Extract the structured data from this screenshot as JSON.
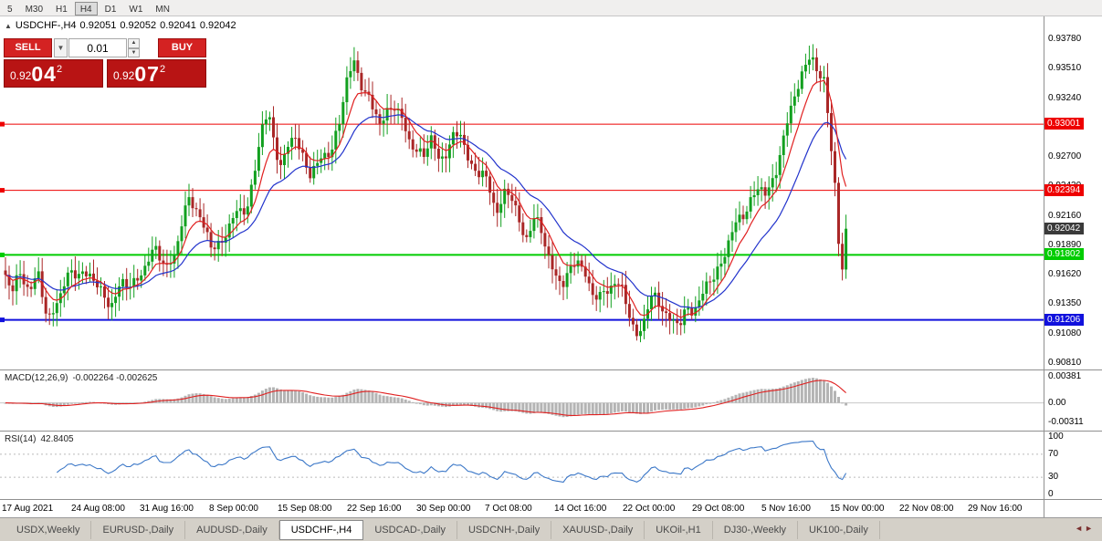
{
  "toolbar": {
    "timeframes": [
      "5",
      "M30",
      "H1",
      "H4",
      "D1",
      "W1",
      "MN"
    ],
    "active": "H4"
  },
  "chart_header": {
    "collapse_icon": "up-triangle",
    "symbol_period": "USDCHF-,H4",
    "open": "0.92051",
    "high": "0.92052",
    "low": "0.92041",
    "close": "0.92042"
  },
  "trade_panel": {
    "sell_label": "SELL",
    "buy_label": "BUY",
    "volume": "0.01",
    "sell_price": {
      "prefix": "0.92",
      "main": "04",
      "sup": "2"
    },
    "buy_price": {
      "prefix": "0.92",
      "main": "07",
      "sup": "2"
    },
    "panel_color": "#b81414",
    "button_color": "#d42222"
  },
  "price_axis": {
    "labels": [
      "0.93780",
      "0.93510",
      "0.93240",
      "0.92970",
      "0.92700",
      "0.92430",
      "0.92160",
      "0.91890",
      "0.91620",
      "0.91350",
      "0.91080",
      "0.90810"
    ]
  },
  "hlines": [
    {
      "price": 0.93001,
      "label": "0.93001",
      "color": "#ee0000"
    },
    {
      "price": 0.92394,
      "label": "0.92394",
      "color": "#ee0000"
    },
    {
      "price": 0.91802,
      "label": "0.91802",
      "color": "#00cc00"
    },
    {
      "price": 0.91206,
      "label": "0.91206",
      "color": "#1111dd"
    }
  ],
  "current_price": {
    "label": "0.92042",
    "value": 0.92042,
    "box_color": "#3a3a3a"
  },
  "macd": {
    "label": "MACD(12,26,9)",
    "values": "-0.002264 -0.002625",
    "axis": [
      "0.00381",
      "0.00",
      "-0.00311"
    ],
    "hist_color": "#b4b4b4",
    "signal_color": "#e02020"
  },
  "rsi": {
    "label": "RSI(14)",
    "value": "42.8405",
    "axis": [
      "100",
      "70",
      "30",
      "0"
    ],
    "levels": [
      70,
      30
    ],
    "line_color": "#3c78c8"
  },
  "time_axis": [
    "17 Aug 2021",
    "24 Aug 08:00",
    "31 Aug 16:00",
    "8 Sep 00:00",
    "15 Sep 08:00",
    "22 Sep 16:00",
    "30 Sep 00:00",
    "7 Oct 08:00",
    "14 Oct 16:00",
    "22 Oct 00:00",
    "29 Oct 08:00",
    "5 Nov 16:00",
    "15 Nov 00:00",
    "22 Nov 08:00",
    "29 Nov 16:00"
  ],
  "tabs": {
    "items": [
      "USDX,Weekly",
      "EURUSD-,Daily",
      "AUDUSD-,Daily",
      "USDCHF-,H4",
      "USDCAD-,Daily",
      "USDCNH-,Daily",
      "XAUUSD-,Daily",
      "UKOil-,H1",
      "DJ30-,Weekly",
      "UK100-,Daily"
    ],
    "active_index": 3
  },
  "chart_data": {
    "type": "candlestick",
    "symbol": "USDCHF-",
    "timeframe": "H4",
    "ylim": [
      0.90751,
      0.93989
    ],
    "last_close": 0.92042,
    "up_color": "#12a01f",
    "down_color": "#aa2727",
    "ma_fast_color": "#e02020",
    "ma_slow_color": "#2233cc",
    "indicators": {
      "ma_fast_period": 8,
      "ma_slow_period": 21,
      "macd": [
        12,
        26,
        9
      ],
      "rsi_period": 14
    },
    "waypoints": [
      [
        6,
        0.9158
      ],
      [
        14,
        0.9146
      ],
      [
        22,
        0.9163
      ],
      [
        32,
        0.9152
      ],
      [
        42,
        0.9158
      ],
      [
        52,
        0.912
      ],
      [
        60,
        0.9135
      ],
      [
        70,
        0.9152
      ],
      [
        80,
        0.9162
      ],
      [
        90,
        0.9168
      ],
      [
        100,
        0.9158
      ],
      [
        112,
        0.9143
      ],
      [
        122,
        0.9138
      ],
      [
        132,
        0.915
      ],
      [
        142,
        0.9152
      ],
      [
        152,
        0.9163
      ],
      [
        162,
        0.9172
      ],
      [
        172,
        0.9185
      ],
      [
        182,
        0.9172
      ],
      [
        192,
        0.9178
      ],
      [
        200,
        0.921
      ],
      [
        208,
        0.9238
      ],
      [
        216,
        0.9222
      ],
      [
        224,
        0.92
      ],
      [
        232,
        0.9186
      ],
      [
        240,
        0.9192
      ],
      [
        248,
        0.9202
      ],
      [
        256,
        0.9212
      ],
      [
        264,
        0.922
      ],
      [
        272,
        0.923
      ],
      [
        280,
        0.9262
      ],
      [
        288,
        0.9298
      ],
      [
        294,
        0.9308
      ],
      [
        300,
        0.9288
      ],
      [
        308,
        0.9262
      ],
      [
        316,
        0.9278
      ],
      [
        324,
        0.9288
      ],
      [
        332,
        0.9272
      ],
      [
        340,
        0.9255
      ],
      [
        348,
        0.926
      ],
      [
        356,
        0.9272
      ],
      [
        364,
        0.9282
      ],
      [
        372,
        0.9302
      ],
      [
        380,
        0.9338
      ],
      [
        388,
        0.9358
      ],
      [
        394,
        0.9345
      ],
      [
        400,
        0.933
      ],
      [
        408,
        0.9312
      ],
      [
        416,
        0.93
      ],
      [
        424,
        0.9315
      ],
      [
        432,
        0.9318
      ],
      [
        440,
        0.93
      ],
      [
        448,
        0.9286
      ],
      [
        456,
        0.928
      ],
      [
        464,
        0.927
      ],
      [
        472,
        0.9284
      ],
      [
        480,
        0.927
      ],
      [
        488,
        0.9276
      ],
      [
        496,
        0.9285
      ],
      [
        504,
        0.929
      ],
      [
        512,
        0.9272
      ],
      [
        520,
        0.926
      ],
      [
        528,
        0.9252
      ],
      [
        536,
        0.924
      ],
      [
        544,
        0.9222
      ],
      [
        552,
        0.9238
      ],
      [
        560,
        0.9232
      ],
      [
        568,
        0.921
      ],
      [
        576,
        0.9198
      ],
      [
        584,
        0.9214
      ],
      [
        592,
        0.9202
      ],
      [
        600,
        0.918
      ],
      [
        608,
        0.9166
      ],
      [
        616,
        0.9152
      ],
      [
        624,
        0.916
      ],
      [
        632,
        0.918
      ],
      [
        640,
        0.9168
      ],
      [
        648,
        0.9142
      ],
      [
        656,
        0.9138
      ],
      [
        664,
        0.915
      ],
      [
        672,
        0.9158
      ],
      [
        680,
        0.9148
      ],
      [
        688,
        0.9128
      ],
      [
        696,
        0.9108
      ],
      [
        704,
        0.9118
      ],
      [
        712,
        0.9136
      ],
      [
        720,
        0.914
      ],
      [
        728,
        0.913
      ],
      [
        736,
        0.912
      ],
      [
        744,
        0.9112
      ],
      [
        752,
        0.913
      ],
      [
        760,
        0.9134
      ],
      [
        768,
        0.914
      ],
      [
        776,
        0.9152
      ],
      [
        784,
        0.9164
      ],
      [
        792,
        0.918
      ],
      [
        800,
        0.9196
      ],
      [
        808,
        0.9208
      ],
      [
        816,
        0.9222
      ],
      [
        824,
        0.9236
      ],
      [
        832,
        0.924
      ],
      [
        840,
        0.9232
      ],
      [
        848,
        0.9256
      ],
      [
        856,
        0.928
      ],
      [
        864,
        0.9304
      ],
      [
        872,
        0.933
      ],
      [
        880,
        0.9352
      ],
      [
        886,
        0.9366
      ],
      [
        890,
        0.936
      ],
      [
        894,
        0.9345
      ],
      [
        898,
        0.9338
      ],
      [
        902,
        0.9342
      ],
      [
        906,
        0.932
      ],
      [
        909,
        0.9295
      ],
      [
        912,
        0.9268
      ],
      [
        915,
        0.924
      ],
      [
        918,
        0.92
      ],
      [
        920,
        0.9168
      ],
      [
        922,
        0.9162
      ],
      [
        924,
        0.9178
      ],
      [
        928,
        0.9204
      ]
    ]
  }
}
